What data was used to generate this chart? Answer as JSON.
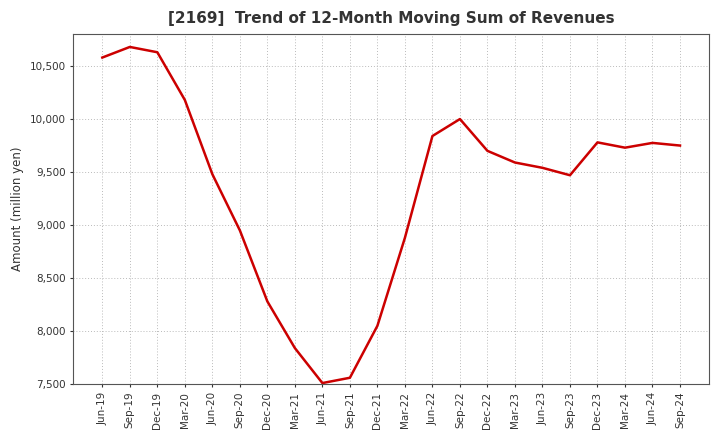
{
  "title": "[2169]  Trend of 12-Month Moving Sum of Revenues",
  "ylabel": "Amount (million yen)",
  "background_color": "#ffffff",
  "line_color": "#cc0000",
  "line_width": 1.8,
  "grid_color": "#bbbbbb",
  "ylim": [
    7500,
    10800
  ],
  "yticks": [
    7500,
    8000,
    8500,
    9000,
    9500,
    10000,
    10500
  ],
  "x_labels": [
    "Jun-19",
    "Sep-19",
    "Dec-19",
    "Mar-20",
    "Jun-20",
    "Sep-20",
    "Dec-20",
    "Mar-21",
    "Jun-21",
    "Sep-21",
    "Dec-21",
    "Mar-22",
    "Jun-22",
    "Sep-22",
    "Dec-22",
    "Mar-23",
    "Jun-23",
    "Sep-23",
    "Dec-23",
    "Mar-24",
    "Jun-24",
    "Sep-24"
  ],
  "values": [
    10580,
    10680,
    10630,
    10180,
    9480,
    8950,
    8280,
    7840,
    7510,
    7560,
    8050,
    8880,
    9840,
    10000,
    9700,
    9590,
    9540,
    9470,
    9780,
    9730,
    9775,
    9750
  ],
  "title_fontsize": 11,
  "title_color": "#333333",
  "tick_fontsize": 7.5,
  "ylabel_fontsize": 8.5
}
